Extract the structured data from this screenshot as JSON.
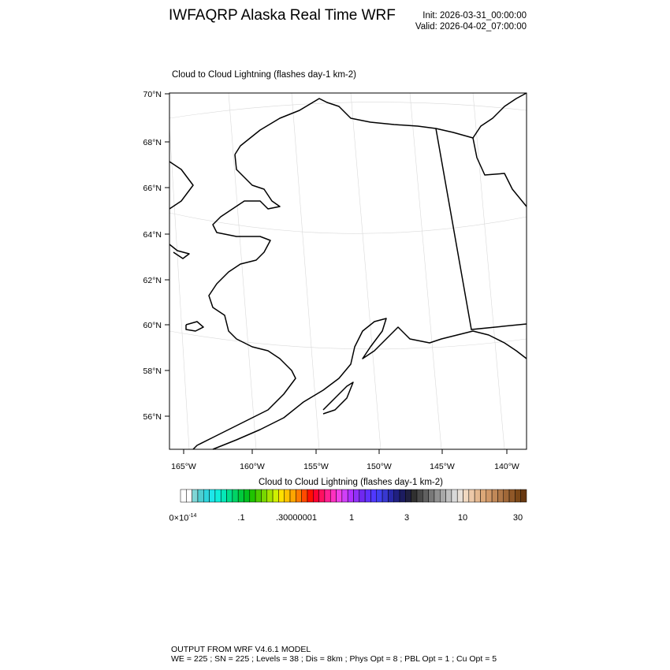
{
  "header": {
    "title": "IWFAQRP Alaska Real Time WRF",
    "init": "Init: 2026-03-31_00:00:00",
    "valid": "Valid: 2026-04-02_07:00:00"
  },
  "map": {
    "field_title": "Cloud to Cloud Lightning   (flashes day-1 km-2)",
    "lat_labels": [
      "70°N",
      "68°N",
      "66°N",
      "64°N",
      "62°N",
      "60°N",
      "58°N",
      "56°N"
    ],
    "lon_labels": [
      "165°W",
      "160°W",
      "155°W",
      "150°W",
      "145°W",
      "140°W"
    ],
    "region": "Alaska",
    "coastline_color": "#000000",
    "grid_color": "#d9d9d9"
  },
  "colorbar": {
    "title": "Cloud to Cloud Lightning  (flashes day-1 km-2)",
    "labels": [
      "0×10",
      "-14",
      ".1",
      ".30000001",
      "1",
      "3",
      "10",
      "30"
    ],
    "colors": [
      "#ffffff",
      "#ffffff",
      "#7fd6d6",
      "#4fcdd0",
      "#2ed4dc",
      "#1ee6ea",
      "#10eedb",
      "#05e8b8",
      "#00de8c",
      "#00d465",
      "#00ca3c",
      "#02c020",
      "#20c400",
      "#4ccc00",
      "#78d800",
      "#a6e200",
      "#cef000",
      "#ffdf00",
      "#ffc200",
      "#ffa500",
      "#ff7a00",
      "#ff4a00",
      "#ff1000",
      "#ff0030",
      "#ff1060",
      "#ff2090",
      "#ff30c0",
      "#f040e8",
      "#d040f8",
      "#b030ff",
      "#9030f8",
      "#7028f0",
      "#6030ff",
      "#5038ff",
      "#4040f0",
      "#3838d0",
      "#2828a8",
      "#202080",
      "#1c1c60",
      "#202040",
      "#303030",
      "#484848",
      "#606060",
      "#787878",
      "#909090",
      "#a8a8a8",
      "#c0c0c0",
      "#d8d8d8",
      "#e8e0d8",
      "#f0d8c0",
      "#ecc8a8",
      "#e4b890",
      "#dca878",
      "#d09868",
      "#c08858",
      "#b07848",
      "#a06838",
      "#905828",
      "#7c4818",
      "#683810"
    ]
  },
  "footer": {
    "line1": "OUTPUT FROM WRF V4.6.1 MODEL",
    "line2": "WE = 225 ; SN = 225 ; Levels = 38 ; Dis = 8km ; Phys Opt = 8 ; PBL Opt = 1 ; Cu Opt = 5"
  }
}
